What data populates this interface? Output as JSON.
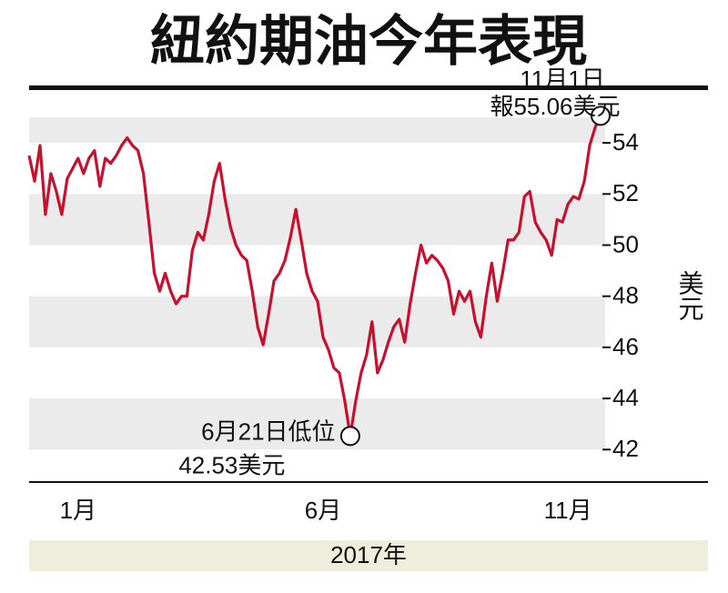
{
  "chart_data": {
    "type": "line",
    "title": "紐約期油今年表現",
    "y_label": "美元",
    "x_label": "2017年",
    "categories": [
      null,
      null,
      null,
      null,
      null,
      null,
      null,
      null,
      null,
      "1月",
      null,
      null,
      null,
      null,
      null,
      null,
      null,
      null,
      null,
      null,
      null,
      null,
      null,
      null,
      null,
      null,
      null,
      null,
      null,
      null,
      null,
      null,
      null,
      null,
      null,
      null,
      null,
      null,
      null,
      null,
      null,
      null,
      null,
      null,
      null,
      null,
      null,
      null,
      null,
      null,
      null,
      null,
      null,
      null,
      "6月",
      null,
      null,
      null,
      null,
      null,
      null,
      null,
      null,
      null,
      null,
      null,
      null,
      null,
      null,
      null,
      null,
      null,
      null,
      null,
      null,
      null,
      null,
      null,
      null,
      null,
      null,
      null,
      null,
      null,
      null,
      null,
      null,
      null,
      null,
      null,
      null,
      null,
      null,
      null,
      null,
      null,
      null,
      null,
      null,
      "11月",
      null,
      null,
      null,
      null,
      null,
      null
    ],
    "series": [
      {
        "color": "#c8102e",
        "values": [
          53.5,
          52.5,
          53.9,
          51.2,
          52.8,
          52.1,
          51.2,
          52.6,
          53.0,
          53.4,
          52.8,
          53.4,
          53.7,
          52.3,
          53.4,
          53.2,
          53.5,
          53.9,
          54.2,
          53.9,
          53.7,
          52.8,
          50.9,
          48.9,
          48.2,
          48.9,
          48.2,
          47.7,
          48.0,
          48.0,
          49.8,
          50.5,
          50.2,
          51.2,
          52.5,
          53.2,
          51.8,
          50.7,
          50.0,
          49.6,
          49.4,
          48.2,
          46.8,
          46.1,
          47.3,
          48.6,
          48.9,
          49.4,
          50.3,
          51.4,
          50.2,
          48.9,
          48.2,
          47.8,
          46.4,
          45.9,
          45.2,
          45.0,
          43.9,
          42.53,
          43.9,
          45.0,
          45.7,
          47.0,
          45.0,
          45.5,
          46.2,
          46.8,
          47.1,
          46.2,
          47.7,
          48.9,
          50.0,
          49.3,
          49.6,
          49.4,
          49.1,
          48.6,
          47.3,
          48.2,
          47.8,
          48.2,
          47.0,
          46.4,
          48.0,
          49.3,
          47.8,
          48.9,
          50.2,
          50.2,
          50.5,
          51.9,
          52.1,
          50.9,
          50.5,
          50.2,
          49.6,
          51.0,
          50.9,
          51.6,
          51.9,
          51.8,
          52.5,
          53.9,
          54.6,
          55.06
        ]
      }
    ],
    "ylim": [
      41,
      55
    ],
    "yticks": [
      42,
      44,
      46,
      48,
      50,
      52,
      54
    ],
    "bands": true,
    "annotations": [
      {
        "index": 105,
        "lines": [
          "11月1日",
          "報55.06美元"
        ]
      },
      {
        "index": 59,
        "lines": [
          "6月21日低位",
          "42.53美元"
        ]
      }
    ]
  }
}
